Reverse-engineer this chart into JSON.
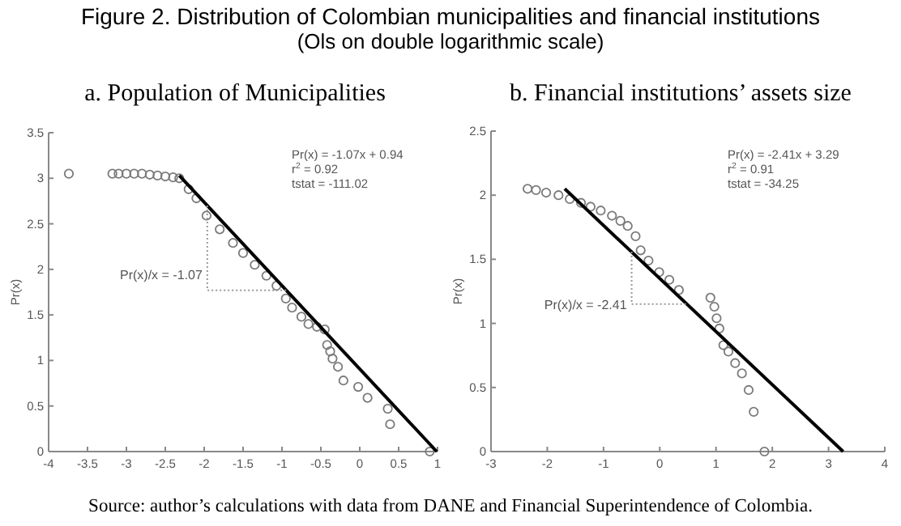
{
  "chart_data": [
    {
      "type": "scatter",
      "title": "a. Population of Municipalities",
      "ylabel": "Pr(x)",
      "grid": false,
      "xlim": [
        -4,
        1
      ],
      "ylim": [
        0,
        3.5
      ],
      "xticks": [
        -4,
        -3.5,
        -3,
        -2.5,
        -2,
        -1.5,
        -1,
        -0.5,
        0,
        0.5,
        1
      ],
      "yticks": [
        0,
        0.5,
        1,
        1.5,
        2,
        2.5,
        3,
        3.5
      ],
      "annotations": [
        "Figure 2. Distribution of Colombian municipalities and financial institutions",
        "(Ols on double logarithmic scale)",
        "Pr(x) = -1.07x + 0.94",
        "r$^{2}$ = 0.92",
        "tstat = -111.02",
        "Pr(x)/x = -1.07"
      ],
      "series": [
        {
          "marker": "circle",
          "color": "#7a7a7a",
          "x": [
            -3.74,
            -3.18,
            -3.1,
            -3.0,
            -2.9,
            -2.8,
            -2.7,
            -2.6,
            -2.5,
            -2.4,
            -2.32,
            -2.2,
            -2.1,
            -1.97,
            -1.8,
            -1.63,
            -1.5,
            -1.35,
            -1.2,
            -1.07,
            -0.95,
            -0.87,
            -0.75,
            -0.66,
            -0.55,
            -0.45,
            -0.42,
            -0.38,
            -0.35,
            -0.28,
            -0.21,
            -0.02,
            0.1,
            0.36,
            0.39,
            0.9
          ],
          "values": [
            3.05,
            3.05,
            3.05,
            3.05,
            3.05,
            3.05,
            3.04,
            3.03,
            3.02,
            3.01,
            3.0,
            2.88,
            2.78,
            2.59,
            2.44,
            2.29,
            2.18,
            2.05,
            1.93,
            1.82,
            1.68,
            1.58,
            1.48,
            1.4,
            1.37,
            1.34,
            1.17,
            1.1,
            1.02,
            0.93,
            0.78,
            0.71,
            0.59,
            0.47,
            0.3,
            0.0
          ]
        },
        {
          "type": "line",
          "line_style": "solid",
          "color": "#000000",
          "x": [
            -2.32,
            0.99
          ],
          "values": [
            3.03,
            0
          ]
        },
        {
          "type": "line",
          "line_style": "dotted",
          "color": "#999999",
          "x": [
            -1.96,
            -1.96,
            -0.94
          ],
          "values": [
            2.7,
            1.77,
            1.77
          ]
        }
      ]
    },
    {
      "type": "scatter",
      "title": "b. Financial institutions’ assets size",
      "ylabel": "Pr(x)",
      "grid": false,
      "xlim": [
        -3,
        4
      ],
      "ylim": [
        0,
        2.5
      ],
      "xticks": [
        -3,
        -2,
        -1,
        0,
        1,
        2,
        3,
        4
      ],
      "yticks": [
        0,
        0.5,
        1,
        1.5,
        2,
        2.5
      ],
      "annotations": [
        "Pr(x) = -2.41x + 3.29",
        "r$^{2}$ = 0.91",
        "tstat = -34.25",
        "Pr(x)/x = -2.41",
        "Source: author’s calculations with data from DANE and Financial Superintendence of Colombia."
      ],
      "series": [
        {
          "marker": "circle",
          "color": "#7a7a7a",
          "x": [
            -2.35,
            -2.2,
            -2.02,
            -1.8,
            -1.6,
            -1.4,
            -1.23,
            -1.05,
            -0.85,
            -0.7,
            -0.57,
            -0.43,
            -0.34,
            -0.2,
            -0.01,
            0.17,
            0.34,
            0.9,
            0.97,
            1.01,
            1.06,
            1.13,
            1.22,
            1.34,
            1.46,
            1.58,
            1.67,
            1.86
          ],
          "values": [
            2.05,
            2.04,
            2.02,
            2.0,
            1.97,
            1.94,
            1.91,
            1.88,
            1.84,
            1.8,
            1.76,
            1.68,
            1.57,
            1.49,
            1.4,
            1.34,
            1.26,
            1.2,
            1.13,
            1.04,
            0.96,
            0.83,
            0.78,
            0.69,
            0.61,
            0.48,
            0.31,
            0.0
          ]
        },
        {
          "type": "line",
          "line_style": "solid",
          "color": "#000000",
          "x": [
            -1.69,
            3.26
          ],
          "values": [
            2.05,
            0
          ]
        },
        {
          "type": "line",
          "line_style": "dotted",
          "color": "#999999",
          "x": [
            -0.5,
            -0.5,
            0.48
          ],
          "values": [
            1.56,
            1.15,
            1.15
          ]
        }
      ]
    }
  ]
}
